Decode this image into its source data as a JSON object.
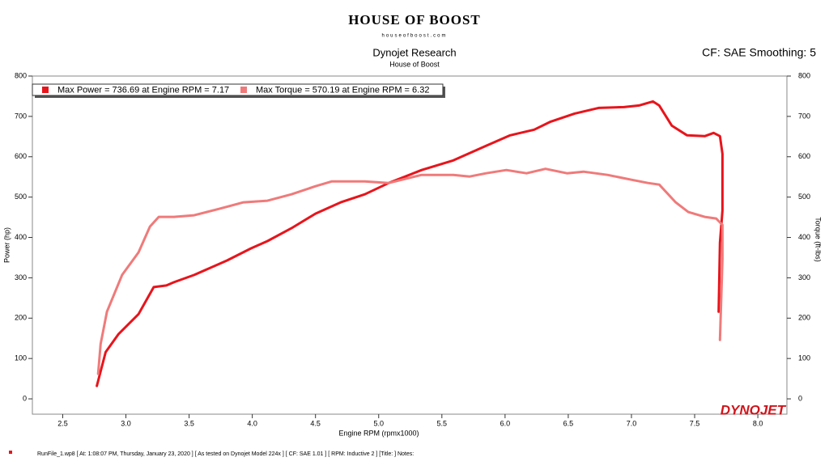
{
  "chart_data": {
    "type": "line",
    "logo": "HOUSE OF BOOST",
    "logo_url": "houseofboost.com",
    "title": "Dynojet Research",
    "subtitle": "House of Boost",
    "correction": "CF: SAE Smoothing: 5",
    "brand": "DYNOJET",
    "xlabel": "Engine RPM (rpmx1000)",
    "ylabel": "Power (hp)",
    "y2label": "Torque (ft-lbs)",
    "footer": "RunFile_1.wp8  [ At: 1:08:07 PM, Thursday, January 23, 2020 ]  [ As tested on Dynojet Model 224x ]  [ CF: SAE 1.01 ]  [ RPM: Inductive 2 ]  [Title: ]   Notes:",
    "xlim": [
      2.26,
      8.23
    ],
    "xticks": [
      2.5,
      {
        "value": 3,
        "label": "3.0"
      },
      3.5,
      {
        "value": 4,
        "label": "4.0"
      },
      4.5,
      {
        "value": 5,
        "label": "5.0"
      },
      5.5,
      {
        "value": 6,
        "label": "6.0"
      },
      6.5,
      {
        "value": 7,
        "label": "7.0"
      },
      7.5,
      {
        "value": 8,
        "label": "8.0"
      }
    ],
    "ylim": [
      -38,
      800
    ],
    "yticks": [
      0,
      100,
      200,
      300,
      400,
      500,
      600,
      700,
      800
    ],
    "y2lim": [
      -38,
      800
    ],
    "y2ticks": [
      0,
      100,
      200,
      300,
      400,
      500,
      600,
      700,
      800
    ],
    "series": [
      {
        "name": "Max Power = 736.69 at Engine RPM = 7.17",
        "color": "#e8141b",
        "x": [
          2.77,
          2.84,
          2.94,
          3.1,
          3.22,
          3.32,
          3.38,
          3.54,
          3.8,
          3.99,
          4.12,
          4.31,
          4.5,
          4.7,
          4.89,
          5.08,
          5.34,
          5.59,
          5.85,
          6.04,
          6.23,
          6.36,
          6.55,
          6.74,
          6.94,
          7.06,
          7.17,
          7.22,
          7.32,
          7.44,
          7.58,
          7.65,
          7.7,
          7.72,
          7.72,
          7.7,
          7.69
        ],
        "values": [
          32,
          116,
          160,
          210,
          277,
          281,
          289,
          307,
          343,
          373,
          391,
          423,
          459,
          487,
          507,
          535,
          567,
          591,
          627,
          653,
          667,
          687,
          707,
          721,
          723,
          727,
          737,
          727,
          677,
          653,
          651,
          659,
          651,
          607,
          467,
          387,
          216
        ]
      },
      {
        "name": "Max Torque = 570.19 at Engine RPM = 6.32",
        "color": "#f07a7a",
        "axis": "y2",
        "x": [
          2.78,
          2.8,
          2.85,
          2.97,
          3.1,
          3.19,
          3.26,
          3.38,
          3.54,
          3.74,
          3.93,
          4.12,
          4.31,
          4.5,
          4.63,
          4.89,
          5.08,
          5.34,
          5.59,
          5.72,
          5.85,
          6.01,
          6.17,
          6.32,
          6.49,
          6.62,
          6.81,
          7.0,
          7.13,
          7.22,
          7.35,
          7.45,
          7.58,
          7.67,
          7.72,
          7.72,
          7.7
        ],
        "values": [
          62,
          136,
          216,
          307,
          363,
          427,
          451,
          451,
          455,
          471,
          487,
          491,
          507,
          527,
          539,
          539,
          535,
          555,
          555,
          551,
          559,
          567,
          559,
          570,
          559,
          563,
          555,
          543,
          535,
          531,
          487,
          463,
          451,
          447,
          431,
          347,
          146
        ]
      }
    ]
  }
}
